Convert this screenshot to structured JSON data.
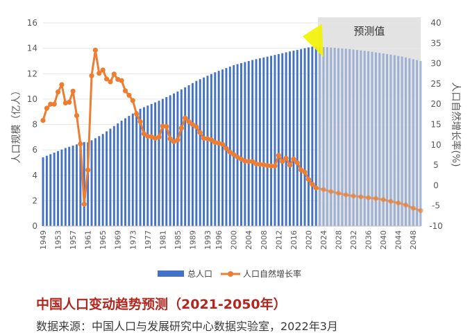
{
  "title": "中国人口变动趋势预测（2021-2050年）",
  "source": "数据来源：中国人口与发展研究中心数据实验室，2022年3月",
  "colors": {
    "population_bar": "#4472c4",
    "growth_line": "#ed7d31",
    "forecast_shade": "#d9d9d9",
    "highlight": "#f2f200",
    "title": "#b3261e"
  },
  "chart_data": {
    "type": "bar",
    "forecast_label": "预测值",
    "forecast_range": [
      2022,
      2050
    ],
    "x_range": [
      1949,
      2050
    ],
    "x_ticks": [
      "1949",
      "1953",
      "1957",
      "1961",
      "1965",
      "1969",
      "1973",
      "1977",
      "1981",
      "1985",
      "1989",
      "1993",
      "1996",
      "2000",
      "2004",
      "2008",
      "2012",
      "2016",
      "2020",
      "2024",
      "2028",
      "2032",
      "2036",
      "2040",
      "2044",
      "2048"
    ],
    "y_left": {
      "label": "人口规模（亿人）",
      "range": [
        0,
        16
      ],
      "ticks": [
        "0",
        "2",
        "4",
        "6",
        "8",
        "10",
        "12",
        "14",
        "16"
      ]
    },
    "y_right": {
      "label": "人口自然增长率(%)",
      "range": [
        -10,
        40
      ],
      "ticks": [
        "-10",
        "-5",
        "0",
        "5",
        "10",
        "15",
        "20",
        "25",
        "30",
        "35",
        "40"
      ]
    },
    "legend": [
      "总人口",
      "人口自然增长率"
    ],
    "legend_position": "bottom",
    "series": [
      {
        "name": "总人口",
        "type": "bar",
        "axis": "left",
        "points": [
          [
            1949,
            5.42
          ],
          [
            1955,
            6.15
          ],
          [
            1960,
            6.62
          ],
          [
            1961,
            6.59
          ],
          [
            1965,
            7.25
          ],
          [
            1970,
            8.3
          ],
          [
            1975,
            9.24
          ],
          [
            1980,
            9.87
          ],
          [
            1985,
            10.59
          ],
          [
            1990,
            11.43
          ],
          [
            1995,
            12.11
          ],
          [
            2000,
            12.67
          ],
          [
            2005,
            13.08
          ],
          [
            2010,
            13.41
          ],
          [
            2015,
            13.75
          ],
          [
            2021,
            14.13
          ],
          [
            2025,
            14.08
          ],
          [
            2030,
            13.97
          ],
          [
            2035,
            13.8
          ],
          [
            2040,
            13.6
          ],
          [
            2045,
            13.35
          ],
          [
            2050,
            13.0
          ]
        ]
      },
      {
        "name": "人口自然增长率",
        "type": "line",
        "axis": "right",
        "points": [
          [
            1949,
            16.0
          ],
          [
            1950,
            19.0
          ],
          [
            1951,
            20.0
          ],
          [
            1952,
            20.0
          ],
          [
            1953,
            23.0
          ],
          [
            1954,
            24.8
          ],
          [
            1955,
            20.3
          ],
          [
            1956,
            20.5
          ],
          [
            1957,
            23.2
          ],
          [
            1958,
            17.2
          ],
          [
            1959,
            10.2
          ],
          [
            1960,
            -4.6
          ],
          [
            1961,
            3.8
          ],
          [
            1962,
            27.0
          ],
          [
            1963,
            33.3
          ],
          [
            1964,
            27.6
          ],
          [
            1965,
            28.4
          ],
          [
            1966,
            26.2
          ],
          [
            1967,
            25.5
          ],
          [
            1968,
            27.4
          ],
          [
            1969,
            26.1
          ],
          [
            1970,
            25.8
          ],
          [
            1971,
            23.3
          ],
          [
            1972,
            22.2
          ],
          [
            1973,
            20.9
          ],
          [
            1974,
            17.6
          ],
          [
            1975,
            15.7
          ],
          [
            1976,
            12.7
          ],
          [
            1977,
            12.1
          ],
          [
            1978,
            12.0
          ],
          [
            1979,
            11.6
          ],
          [
            1980,
            11.9
          ],
          [
            1981,
            14.6
          ],
          [
            1982,
            14.5
          ],
          [
            1983,
            11.5
          ],
          [
            1984,
            10.8
          ],
          [
            1985,
            11.2
          ],
          [
            1986,
            14.1
          ],
          [
            1987,
            16.6
          ],
          [
            1988,
            15.7
          ],
          [
            1989,
            15.0
          ],
          [
            1990,
            14.4
          ],
          [
            1991,
            13.0
          ],
          [
            1992,
            11.6
          ],
          [
            1993,
            11.5
          ],
          [
            1994,
            11.2
          ],
          [
            1995,
            10.6
          ],
          [
            1996,
            10.4
          ],
          [
            1997,
            10.1
          ],
          [
            1998,
            9.1
          ],
          [
            1999,
            8.2
          ],
          [
            2000,
            7.6
          ],
          [
            2001,
            7.0
          ],
          [
            2002,
            6.5
          ],
          [
            2003,
            6.0
          ],
          [
            2004,
            5.9
          ],
          [
            2005,
            5.9
          ],
          [
            2006,
            5.3
          ],
          [
            2007,
            5.2
          ],
          [
            2008,
            5.1
          ],
          [
            2009,
            4.9
          ],
          [
            2010,
            4.8
          ],
          [
            2011,
            4.8
          ],
          [
            2012,
            7.4
          ],
          [
            2013,
            5.9
          ],
          [
            2014,
            6.7
          ],
          [
            2015,
            5.0
          ],
          [
            2016,
            6.5
          ],
          [
            2017,
            5.6
          ],
          [
            2018,
            3.8
          ],
          [
            2019,
            3.3
          ],
          [
            2020,
            1.5
          ],
          [
            2021,
            0.3
          ],
          [
            2022,
            -0.6
          ],
          [
            2024,
            -1.0
          ],
          [
            2026,
            -1.5
          ],
          [
            2028,
            -1.9
          ],
          [
            2030,
            -2.3
          ],
          [
            2032,
            -2.6
          ],
          [
            2034,
            -2.8
          ],
          [
            2036,
            -3.0
          ],
          [
            2038,
            -3.2
          ],
          [
            2040,
            -3.5
          ],
          [
            2042,
            -3.9
          ],
          [
            2044,
            -4.3
          ],
          [
            2046,
            -4.8
          ],
          [
            2048,
            -5.6
          ],
          [
            2050,
            -6.2
          ]
        ]
      }
    ],
    "grid": "horizontal"
  }
}
